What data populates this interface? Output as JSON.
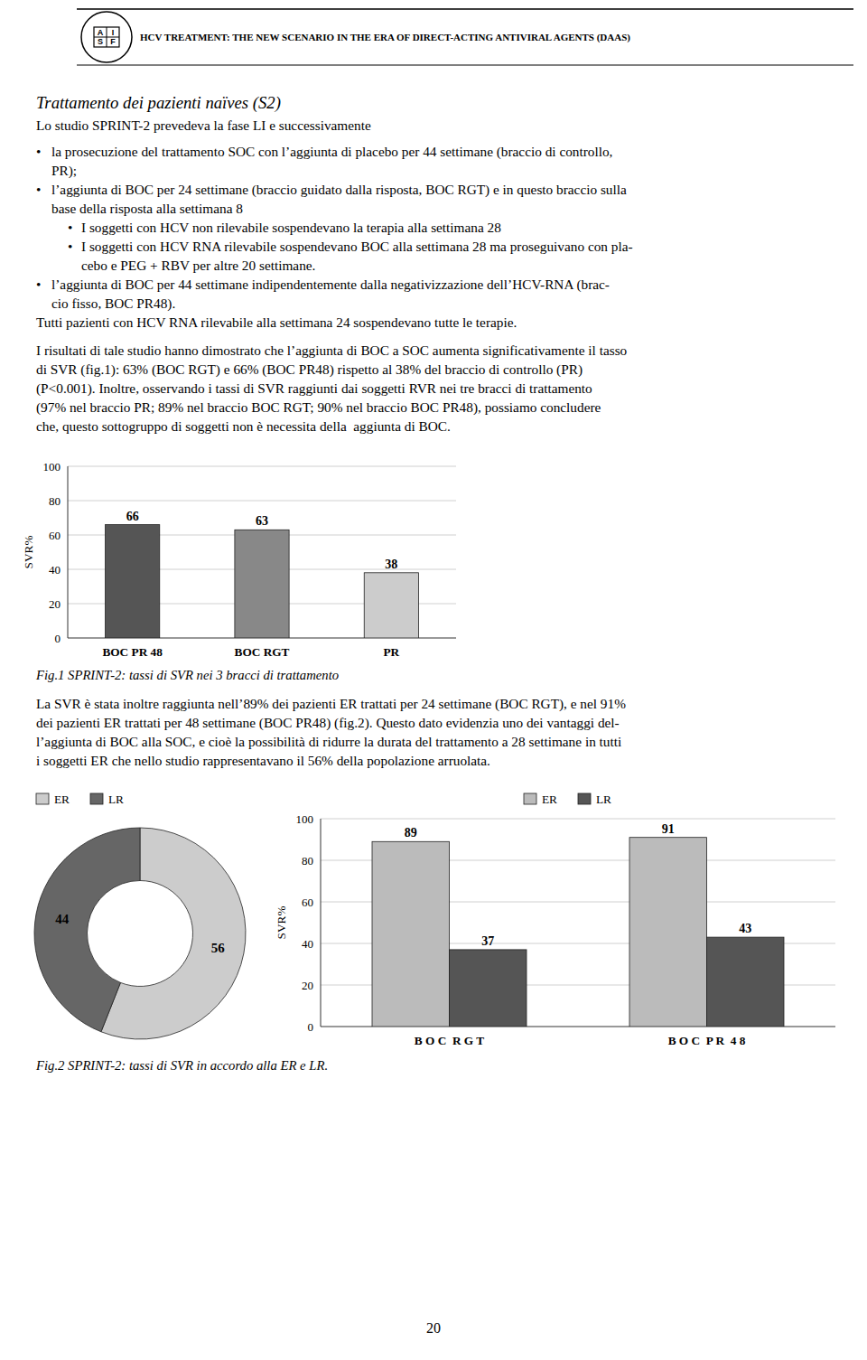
{
  "chart_data": [
    {
      "type": "bar",
      "title": "Fig.1 SPRINT-2: tassi di SVR nei 3 bracci di trattamento",
      "categories": [
        "BOC PR 48",
        "BOC RGT",
        "PR"
      ],
      "values": [
        66,
        63,
        38
      ],
      "colors": [
        "#555555",
        "#888888",
        "#cccccc"
      ],
      "ylabel": "SVR%",
      "ylim": [
        0,
        100
      ],
      "yticks": [
        0,
        20,
        40,
        60,
        80,
        100
      ],
      "grid": true,
      "data_labels": true
    },
    {
      "type": "donut",
      "categories": [
        "ER",
        "LR"
      ],
      "values": [
        56,
        44
      ],
      "colors": [
        "#cccccc",
        "#666666"
      ],
      "data_labels": true,
      "legend": "top"
    },
    {
      "type": "bar",
      "title": "Fig.2 SPRINT-2: tassi di SVR in accordo alla ER e LR.",
      "categories": [
        "B O C  R G T",
        "B O C  P R  4 8"
      ],
      "series": [
        {
          "name": "ER",
          "color": "#bbbbbb",
          "values": [
            89,
            91
          ]
        },
        {
          "name": "LR",
          "color": "#555555",
          "values": [
            37,
            43
          ]
        }
      ],
      "ylabel": "SVR%",
      "ylim": [
        0,
        100
      ],
      "yticks": [
        0,
        20,
        40,
        60,
        80,
        100
      ],
      "grid": true,
      "data_labels": true,
      "legend": "top"
    }
  ],
  "page": {
    "header_title": "HCV TREATMENT: THE NEW SCENARIO IN THE ERA OF DIRECT-ACTING ANTIVIRAL AGENTS (DAAS)",
    "logo_letters": [
      "A",
      "I",
      "S",
      "F"
    ],
    "page_title": "Trattamento dei pazienti naïves (S2)",
    "body_text_para1": "Lo studio SPRINT-2 prevedeva la fase LI e successivamente",
    "body_text_bullets": [
      [
        "•",
        "la prosecuzione del trattamento SOC con l’aggiunta di placebo per 44 settimane (braccio di controllo,",
        "PR);"
      ],
      [
        "•",
        "l’aggiunta di BOC per 24 settimane (braccio guidato dalla risposta, BOC RGT) e in questo braccio sulla",
        "base della risposta alla settimana 8"
      ],
      [
        "  •",
        "I soggetti con HCV non rilevabile sospendevano la terapia alla settimana 28"
      ],
      [
        "  •",
        "I soggetti con HCV RNA rilevabile sospendevano BOC alla settimana 28 ma proseguivano con pla-",
        "cebo e PEG + RBV per altre 20 settimane."
      ],
      [
        "•",
        "l’aggiunta di BOC per 44 settimane indipendentemente dalla negativizzazione dell’HCV-RNA (brac-",
        "cio fisso, BOC PR48)."
      ]
    ],
    "body_text_para2": "Tutti pazienti con HCV RNA rilevabile alla settimana 24 sospendevano tutte le terapie.",
    "body_text_para3_lines": [
      "I risultati di tale studio hanno dimostrato che l’aggiunta di BOC a SOC aumenta significativamente il tasso",
      "di SVR (fig.1): 63% (BOC RGT) e 66% (BOC PR48) rispetto al 38% del braccio di controllo (PR)",
      "(P<0.001). Inoltre, osservando i tassi di SVR raggiunti dai soggetti RVR nei tre bracci di trattamento",
      "(97% nel braccio PR; 89% nel braccio BOC RGT; 90% nel braccio BOC PR48), possiamo concludere",
      "che, questo sottogruppo di soggetti non è necessita della  aggiunta di BOC."
    ],
    "body_text2_lines": [
      "La SVR è stata inoltre raggiunta nell’89% dei pazienti ER trattati per 24 settimane (BOC RGT), e nel 91%",
      "dei pazienti ER trattati per 48 settimane (BOC PR48) (fig.2). Questo dato evidenzia uno dei vantaggi del-",
      "l’aggiunta di BOC alla SOC, e cioè la possibilità di ridurre la durata del trattamento a 28 settimane in tutti",
      "i soggetti ER che nello studio rappresentavano il 56% della popolazione arruolata."
    ],
    "page_number": "20"
  }
}
